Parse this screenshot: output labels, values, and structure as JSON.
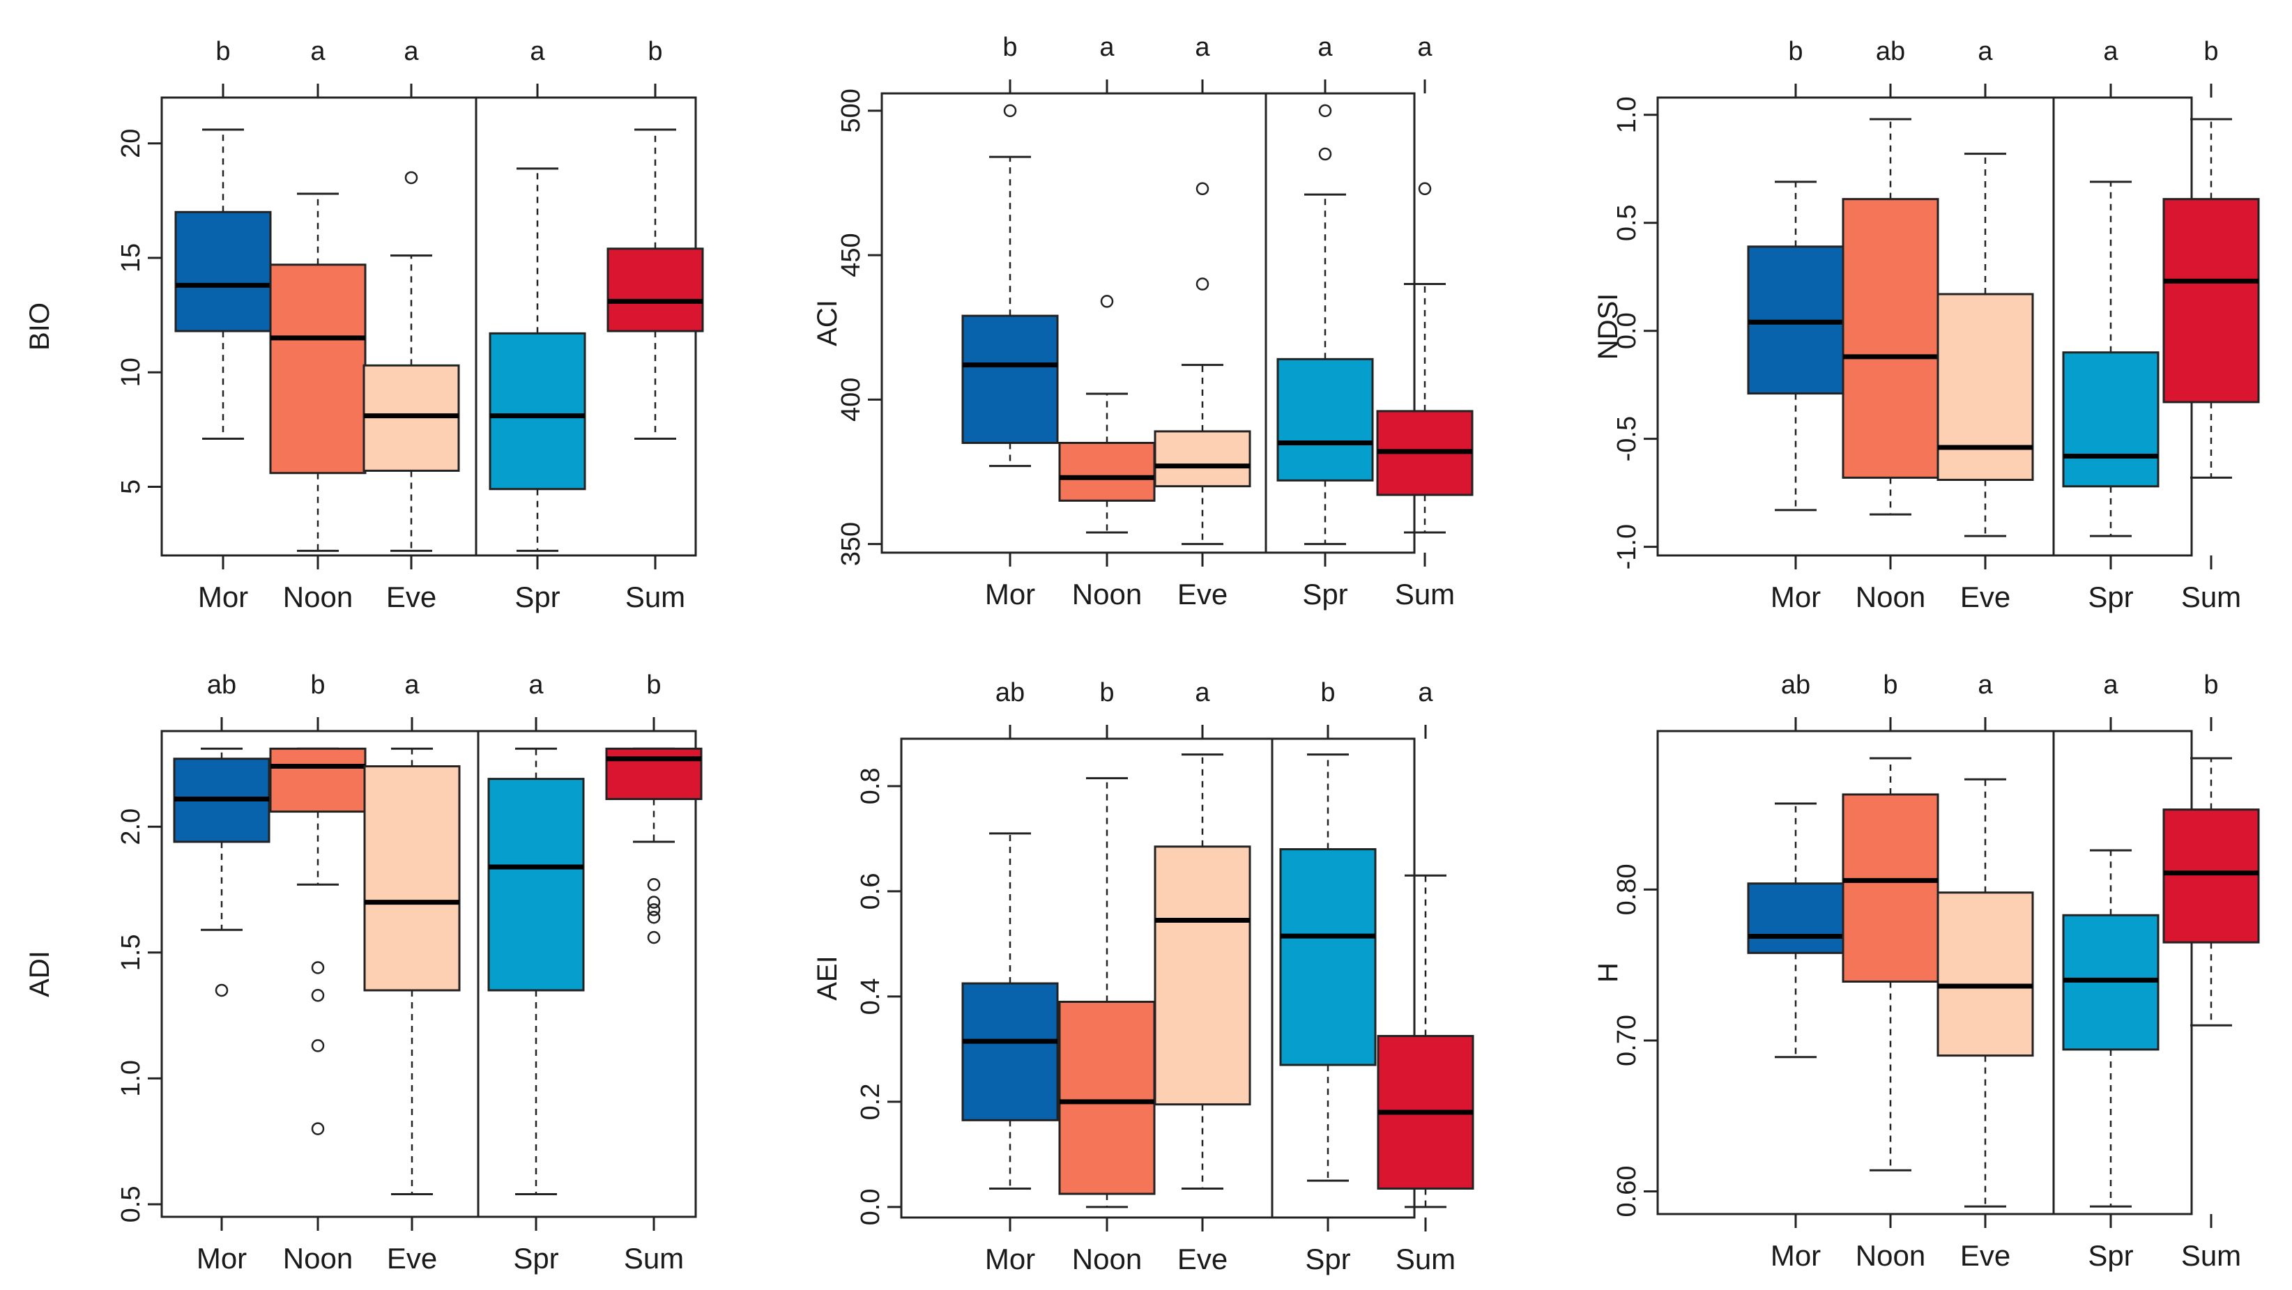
{
  "chart_data": [
    {
      "type": "boxplot",
      "ylabel": "BIO",
      "ylim": [
        2.0,
        22.0
      ],
      "ticks": [
        5,
        10,
        15,
        20
      ],
      "tick_labels": [
        "5",
        "10",
        "15",
        "20"
      ],
      "categories": [
        "Mor",
        "Noon",
        "Eve",
        "Spr",
        "Sum"
      ],
      "letters": [
        "b",
        "a",
        "a",
        "a",
        "b"
      ],
      "boxes": [
        {
          "name": "Mor",
          "whisker_low": 7.1,
          "q1": 11.8,
          "median": 13.8,
          "q3": 17.0,
          "whisker_high": 20.6,
          "outliers": [],
          "color": "#0862ac"
        },
        {
          "name": "Noon",
          "whisker_low": 2.2,
          "q1": 5.6,
          "median": 11.5,
          "q3": 14.7,
          "whisker_high": 17.8,
          "outliers": [],
          "color": "#f47558"
        },
        {
          "name": "Eve",
          "whisker_low": 2.2,
          "q1": 5.7,
          "median": 8.1,
          "q3": 10.3,
          "whisker_high": 15.1,
          "outliers": [
            18.5
          ],
          "color": "#fdd0b4"
        },
        {
          "name": "Spr",
          "whisker_low": 2.2,
          "q1": 4.9,
          "median": 8.1,
          "q3": 11.7,
          "whisker_high": 18.9,
          "outliers": [],
          "color": "#069ecd"
        },
        {
          "name": "Sum",
          "whisker_low": 7.1,
          "q1": 11.8,
          "median": 13.1,
          "q3": 15.4,
          "whisker_high": 20.6,
          "outliers": [],
          "color": "#d91530"
        }
      ]
    },
    {
      "type": "boxplot",
      "ylabel": "ACI",
      "ylim": [
        347.0,
        506.0
      ],
      "ticks": [
        350,
        400,
        450,
        500
      ],
      "tick_labels": [
        "350",
        "400",
        "450",
        "500"
      ],
      "categories": [
        "Mor",
        "Noon",
        "Eve",
        "Spr",
        "Sum"
      ],
      "letters": [
        "b",
        "a",
        "a",
        "a",
        "a"
      ],
      "boxes": [
        {
          "name": "Mor",
          "whisker_low": 377,
          "q1": 385,
          "median": 412,
          "q3": 429,
          "whisker_high": 484,
          "outliers": [
            500
          ],
          "color": "#0862ac"
        },
        {
          "name": "Noon",
          "whisker_low": 354,
          "q1": 365,
          "median": 373,
          "q3": 385,
          "whisker_high": 402,
          "outliers": [
            434
          ],
          "color": "#f47558"
        },
        {
          "name": "Eve",
          "whisker_low": 350,
          "q1": 370,
          "median": 377,
          "q3": 389,
          "whisker_high": 412,
          "outliers": [
            440,
            473
          ],
          "color": "#fdd0b4"
        },
        {
          "name": "Spr",
          "whisker_low": 350,
          "q1": 372,
          "median": 385,
          "q3": 414,
          "whisker_high": 471,
          "outliers": [
            485,
            500
          ],
          "color": "#069ecd"
        },
        {
          "name": "Sum",
          "whisker_low": 354,
          "q1": 367,
          "median": 382,
          "q3": 396,
          "whisker_high": 440,
          "outliers": [
            473
          ],
          "color": "#d91530"
        }
      ]
    },
    {
      "type": "boxplot",
      "ylabel": "NDSI",
      "ylim": [
        -1.04,
        1.08
      ],
      "ticks": [
        -1.0,
        -0.5,
        0.0,
        0.5,
        1.0
      ],
      "tick_labels": [
        "-1.0",
        "-0.5",
        "0.0",
        "0.5",
        "1.0"
      ],
      "categories": [
        "Mor",
        "Noon",
        "Eve",
        "Spr",
        "Sum"
      ],
      "letters": [
        "b",
        "ab",
        "a",
        "a",
        "b"
      ],
      "boxes": [
        {
          "name": "Mor",
          "whisker_low": -0.83,
          "q1": -0.29,
          "median": 0.04,
          "q3": 0.39,
          "whisker_high": 0.69,
          "outliers": [],
          "color": "#0862ac"
        },
        {
          "name": "Noon",
          "whisker_low": -0.85,
          "q1": -0.68,
          "median": -0.12,
          "q3": 0.61,
          "whisker_high": 0.98,
          "outliers": [],
          "color": "#f47558"
        },
        {
          "name": "Eve",
          "whisker_low": -0.95,
          "q1": -0.69,
          "median": -0.54,
          "q3": 0.17,
          "whisker_high": 0.82,
          "outliers": [],
          "color": "#fdd0b4"
        },
        {
          "name": "Spr",
          "whisker_low": -0.95,
          "q1": -0.72,
          "median": -0.58,
          "q3": -0.1,
          "whisker_high": 0.69,
          "outliers": [],
          "color": "#069ecd"
        },
        {
          "name": "Sum",
          "whisker_low": -0.68,
          "q1": -0.33,
          "median": 0.23,
          "q3": 0.61,
          "whisker_high": 0.98,
          "outliers": [],
          "color": "#d91530"
        }
      ]
    },
    {
      "type": "boxplot",
      "ylabel": "ADI",
      "ylim": [
        0.45,
        2.38
      ],
      "ticks": [
        0.5,
        1.0,
        1.5,
        2.0
      ],
      "tick_labels": [
        "0.5",
        "1.0",
        "1.5",
        "2.0"
      ],
      "categories": [
        "Mor",
        "Noon",
        "Eve",
        "Spr",
        "Sum"
      ],
      "letters": [
        "ab",
        "b",
        "a",
        "a",
        "b"
      ],
      "boxes": [
        {
          "name": "Mor",
          "whisker_low": 1.59,
          "q1": 1.94,
          "median": 2.11,
          "q3": 2.27,
          "whisker_high": 2.31,
          "outliers": [
            1.35
          ],
          "color": "#0862ac"
        },
        {
          "name": "Noon",
          "whisker_low": 1.77,
          "q1": 2.06,
          "median": 2.24,
          "q3": 2.31,
          "whisker_high": 2.31,
          "outliers": [
            0.8,
            1.13,
            1.33,
            1.44
          ],
          "color": "#f47558"
        },
        {
          "name": "Eve",
          "whisker_low": 0.54,
          "q1": 1.35,
          "median": 1.7,
          "q3": 2.24,
          "whisker_high": 2.31,
          "outliers": [],
          "color": "#fdd0b4"
        },
        {
          "name": "Spr",
          "whisker_low": 0.54,
          "q1": 1.35,
          "median": 1.84,
          "q3": 2.19,
          "whisker_high": 2.31,
          "outliers": [],
          "color": "#069ecd"
        },
        {
          "name": "Sum",
          "whisker_low": 1.94,
          "q1": 2.11,
          "median": 2.27,
          "q3": 2.31,
          "whisker_high": 2.31,
          "outliers": [
            1.56,
            1.64,
            1.67,
            1.7,
            1.77
          ],
          "color": "#d91530"
        }
      ]
    },
    {
      "type": "boxplot",
      "ylabel": "AEI",
      "ylim": [
        -0.02,
        0.89
      ],
      "ticks": [
        0.0,
        0.2,
        0.4,
        0.6,
        0.8
      ],
      "tick_labels": [
        "0.0",
        "0.2",
        "0.4",
        "0.6",
        "0.8"
      ],
      "categories": [
        "Mor",
        "Noon",
        "Eve",
        "Spr",
        "Sum"
      ],
      "letters": [
        "ab",
        "b",
        "a",
        "b",
        "a"
      ],
      "boxes": [
        {
          "name": "Mor",
          "whisker_low": 0.035,
          "q1": 0.165,
          "median": 0.315,
          "q3": 0.425,
          "whisker_high": 0.71,
          "outliers": [],
          "color": "#0862ac"
        },
        {
          "name": "Noon",
          "whisker_low": 0.0,
          "q1": 0.025,
          "median": 0.2,
          "q3": 0.39,
          "whisker_high": 0.815,
          "outliers": [],
          "color": "#f47558"
        },
        {
          "name": "Eve",
          "whisker_low": 0.035,
          "q1": 0.195,
          "median": 0.545,
          "q3": 0.685,
          "whisker_high": 0.86,
          "outliers": [],
          "color": "#fdd0b4"
        },
        {
          "name": "Spr",
          "whisker_low": 0.05,
          "q1": 0.27,
          "median": 0.515,
          "q3": 0.68,
          "whisker_high": 0.86,
          "outliers": [],
          "color": "#069ecd"
        },
        {
          "name": "Sum",
          "whisker_low": 0.0,
          "q1": 0.035,
          "median": 0.18,
          "q3": 0.325,
          "whisker_high": 0.63,
          "outliers": [],
          "color": "#d91530"
        }
      ]
    },
    {
      "type": "boxplot",
      "ylabel": "H",
      "ylim": [
        0.585,
        0.905
      ],
      "ticks": [
        0.6,
        0.7,
        0.8
      ],
      "tick_labels": [
        "0.60",
        "0.70",
        "0.80"
      ],
      "categories": [
        "Mor",
        "Noon",
        "Eve",
        "Spr",
        "Sum"
      ],
      "letters": [
        "ab",
        "b",
        "a",
        "a",
        "b"
      ],
      "boxes": [
        {
          "name": "Mor",
          "whisker_low": 0.689,
          "q1": 0.758,
          "median": 0.769,
          "q3": 0.804,
          "whisker_high": 0.857,
          "outliers": [],
          "color": "#0862ac"
        },
        {
          "name": "Noon",
          "whisker_low": 0.614,
          "q1": 0.739,
          "median": 0.806,
          "q3": 0.863,
          "whisker_high": 0.887,
          "outliers": [],
          "color": "#f47558"
        },
        {
          "name": "Eve",
          "whisker_low": 0.59,
          "q1": 0.69,
          "median": 0.736,
          "q3": 0.798,
          "whisker_high": 0.873,
          "outliers": [],
          "color": "#fdd0b4"
        },
        {
          "name": "Spr",
          "whisker_low": 0.59,
          "q1": 0.694,
          "median": 0.74,
          "q3": 0.783,
          "whisker_high": 0.826,
          "outliers": [],
          "color": "#069ecd"
        },
        {
          "name": "Sum",
          "whisker_low": 0.71,
          "q1": 0.765,
          "median": 0.811,
          "q3": 0.853,
          "whisker_high": 0.887,
          "outliers": [],
          "color": "#d91530"
        }
      ]
    }
  ]
}
